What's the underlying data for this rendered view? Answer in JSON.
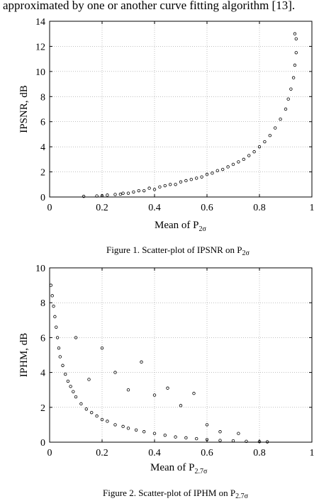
{
  "intro_text": "approximated by one or another curve fitting algorithm [13].",
  "chart_data": [
    {
      "type": "scatter",
      "xlabel_main": "Mean of P",
      "xlabel_sub": "2σ",
      "ylabel": "IPSNR, dB",
      "xlim": [
        0,
        1
      ],
      "ylim": [
        0,
        14
      ],
      "xticks": [
        "0",
        "0.2",
        "0.4",
        "0.6",
        "0.8",
        "1"
      ],
      "yticks": [
        "0",
        "2",
        "4",
        "6",
        "8",
        "10",
        "12",
        "14"
      ],
      "grid": true,
      "marker": "open-circle",
      "caption_main": "Figure 1.   Scatter-plot of IPSNR on  P",
      "caption_sub": "2σ",
      "points": [
        [
          0.13,
          0.05
        ],
        [
          0.18,
          0.08
        ],
        [
          0.2,
          0.1
        ],
        [
          0.22,
          0.15
        ],
        [
          0.25,
          0.2
        ],
        [
          0.27,
          0.22
        ],
        [
          0.28,
          0.3
        ],
        [
          0.3,
          0.3
        ],
        [
          0.32,
          0.4
        ],
        [
          0.34,
          0.5
        ],
        [
          0.36,
          0.5
        ],
        [
          0.38,
          0.7
        ],
        [
          0.4,
          0.6
        ],
        [
          0.42,
          0.8
        ],
        [
          0.44,
          0.9
        ],
        [
          0.46,
          1.0
        ],
        [
          0.48,
          1.0
        ],
        [
          0.5,
          1.2
        ],
        [
          0.52,
          1.3
        ],
        [
          0.54,
          1.4
        ],
        [
          0.56,
          1.5
        ],
        [
          0.58,
          1.6
        ],
        [
          0.6,
          1.8
        ],
        [
          0.62,
          1.9
        ],
        [
          0.64,
          2.1
        ],
        [
          0.66,
          2.2
        ],
        [
          0.68,
          2.4
        ],
        [
          0.7,
          2.6
        ],
        [
          0.72,
          2.8
        ],
        [
          0.74,
          3.0
        ],
        [
          0.76,
          3.3
        ],
        [
          0.78,
          3.6
        ],
        [
          0.8,
          4.0
        ],
        [
          0.82,
          4.4
        ],
        [
          0.84,
          4.9
        ],
        [
          0.86,
          5.5
        ],
        [
          0.88,
          6.2
        ],
        [
          0.9,
          7.0
        ],
        [
          0.91,
          7.8
        ],
        [
          0.92,
          8.6
        ],
        [
          0.93,
          9.5
        ],
        [
          0.935,
          10.5
        ],
        [
          0.94,
          11.5
        ],
        [
          0.94,
          12.6
        ],
        [
          0.935,
          13.0
        ]
      ]
    },
    {
      "type": "scatter",
      "xlabel_main": "Mean of P",
      "xlabel_sub": "2.7σ",
      "ylabel": "IPHM, dB",
      "xlim": [
        0,
        1
      ],
      "ylim": [
        0,
        10
      ],
      "xticks": [
        "0",
        "0.2",
        "0.4",
        "0.6",
        "0.8",
        "1"
      ],
      "yticks": [
        "0",
        "2",
        "4",
        "6",
        "8",
        "10"
      ],
      "grid": true,
      "marker": "open-circle",
      "caption_main": "Figure 2.   Scatter-plot of IPHM on  P",
      "caption_sub": "2.7σ",
      "points": [
        [
          0.005,
          9.0
        ],
        [
          0.01,
          8.4
        ],
        [
          0.015,
          7.8
        ],
        [
          0.02,
          7.2
        ],
        [
          0.025,
          6.6
        ],
        [
          0.03,
          6.0
        ],
        [
          0.035,
          5.4
        ],
        [
          0.04,
          4.9
        ],
        [
          0.05,
          4.4
        ],
        [
          0.06,
          3.9
        ],
        [
          0.07,
          3.5
        ],
        [
          0.08,
          3.2
        ],
        [
          0.09,
          2.9
        ],
        [
          0.1,
          2.6
        ],
        [
          0.12,
          2.2
        ],
        [
          0.14,
          1.9
        ],
        [
          0.16,
          1.7
        ],
        [
          0.18,
          1.5
        ],
        [
          0.2,
          1.3
        ],
        [
          0.22,
          1.2
        ],
        [
          0.25,
          1.0
        ],
        [
          0.28,
          0.9
        ],
        [
          0.3,
          0.8
        ],
        [
          0.33,
          0.7
        ],
        [
          0.36,
          0.6
        ],
        [
          0.4,
          0.5
        ],
        [
          0.44,
          0.4
        ],
        [
          0.48,
          0.3
        ],
        [
          0.52,
          0.25
        ],
        [
          0.56,
          0.2
        ],
        [
          0.6,
          0.15
        ],
        [
          0.65,
          0.1
        ],
        [
          0.7,
          0.08
        ],
        [
          0.75,
          0.05
        ],
        [
          0.8,
          0.03
        ],
        [
          0.83,
          0.02
        ],
        [
          0.1,
          6.0
        ],
        [
          0.15,
          3.6
        ],
        [
          0.2,
          5.4
        ],
        [
          0.25,
          4.0
        ],
        [
          0.3,
          3.0
        ],
        [
          0.35,
          4.6
        ],
        [
          0.4,
          2.7
        ],
        [
          0.45,
          3.1
        ],
        [
          0.5,
          2.1
        ],
        [
          0.55,
          2.8
        ],
        [
          0.6,
          1.0
        ],
        [
          0.65,
          0.6
        ],
        [
          0.72,
          0.5
        ]
      ]
    }
  ]
}
